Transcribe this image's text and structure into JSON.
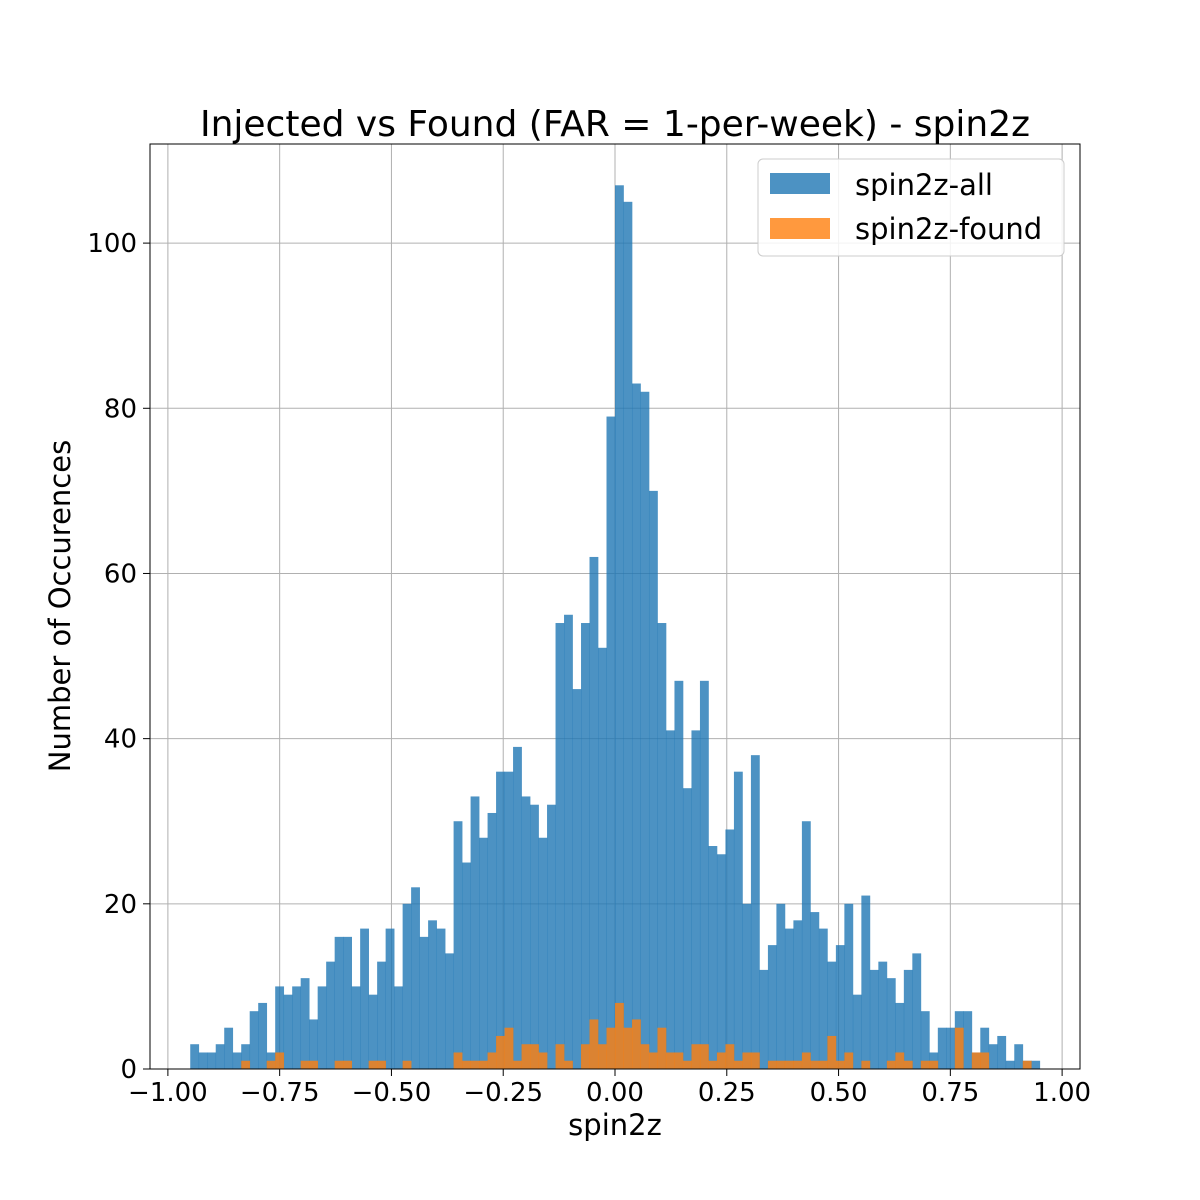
{
  "chart_data": {
    "type": "bar",
    "title": "Injected vs Found (FAR = 1-per-week) - spin2z",
    "xlabel": "spin2z",
    "ylabel": "Number of Occurences",
    "xlim": [
      -1.04,
      1.04
    ],
    "ylim": [
      0,
      112
    ],
    "x_ticks": [
      -1.0,
      -0.75,
      -0.5,
      -0.25,
      0.0,
      0.25,
      0.5,
      0.75,
      1.0
    ],
    "x_tick_labels": [
      "−1.00",
      "−0.75",
      "−0.50",
      "−0.25",
      "0.00",
      "0.25",
      "0.50",
      "0.75",
      "1.00"
    ],
    "y_ticks": [
      0,
      20,
      40,
      60,
      80,
      100
    ],
    "y_tick_labels": [
      "0",
      "20",
      "40",
      "60",
      "80",
      "100"
    ],
    "grid": true,
    "legend_position": "top-right",
    "bins": {
      "start": -0.95,
      "width": 0.019,
      "count": 100
    },
    "series": [
      {
        "name": "spin2z-all",
        "color": "#1f77b4",
        "values": [
          3,
          2,
          2,
          3,
          5,
          2,
          3,
          7,
          8,
          2,
          10,
          9,
          10,
          11,
          6,
          10,
          13,
          16,
          16,
          10,
          17,
          9,
          13,
          17,
          10,
          20,
          22,
          16,
          18,
          17,
          14,
          30,
          25,
          33,
          28,
          31,
          36,
          36,
          39,
          33,
          32,
          28,
          32,
          54,
          55,
          46,
          54,
          62,
          51,
          79,
          107,
          105,
          83,
          82,
          70,
          54,
          41,
          47,
          34,
          41,
          47,
          27,
          26,
          29,
          36,
          20,
          38,
          12,
          15,
          20,
          17,
          18,
          30,
          19,
          17,
          13,
          15,
          20,
          9,
          21,
          12,
          13,
          11,
          8,
          12,
          14,
          7,
          2,
          5,
          5,
          7,
          7,
          2,
          5,
          3,
          4,
          1,
          3,
          1,
          1
        ]
      },
      {
        "name": "spin2z-found",
        "color": "#ff7f0e",
        "values": [
          0,
          0,
          0,
          0,
          0,
          0,
          1,
          0,
          0,
          1,
          2,
          0,
          0,
          1,
          1,
          0,
          0,
          1,
          1,
          0,
          0,
          1,
          1,
          0,
          0,
          1,
          0,
          0,
          0,
          0,
          0,
          2,
          1,
          1,
          1,
          2,
          4,
          5,
          1,
          3,
          3,
          2,
          0,
          3,
          1,
          0,
          3,
          6,
          3,
          5,
          8,
          5,
          6,
          3,
          2,
          5,
          2,
          2,
          1,
          3,
          3,
          1,
          2,
          3,
          1,
          2,
          2,
          0,
          1,
          1,
          1,
          1,
          2,
          1,
          1,
          4,
          1,
          2,
          0,
          1,
          0,
          0,
          1,
          2,
          1,
          0,
          1,
          1,
          0,
          0,
          5,
          0,
          2,
          2,
          0,
          0,
          0,
          0,
          1,
          0
        ]
      }
    ]
  }
}
